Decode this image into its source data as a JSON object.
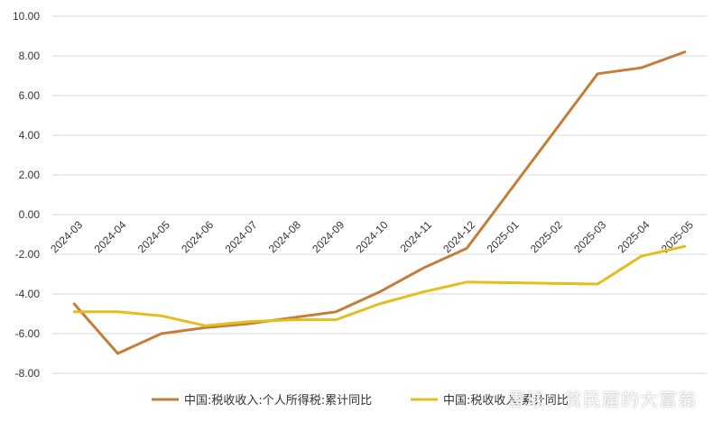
{
  "chart_data": {
    "type": "line",
    "categories": [
      "2024-03",
      "2024-04",
      "2024-05",
      "2024-06",
      "2024-07",
      "2024-08",
      "2024-09",
      "2024-10",
      "2024-11",
      "2024-12",
      "2025-01",
      "2025-02",
      "2025-03",
      "2025-04",
      "2025-05"
    ],
    "series": [
      {
        "name": "中国:税收收入:个人所得税:累计同比",
        "color": "#C47E3A",
        "values": [
          -4.5,
          -7.0,
          -6.0,
          -5.7,
          -5.5,
          -5.2,
          -4.9,
          -3.9,
          -2.7,
          -1.7,
          null,
          null,
          7.1,
          7.4,
          8.2
        ]
      },
      {
        "name": "中国:税收收入:累计同比",
        "color": "#E3BE1E",
        "values": [
          -4.9,
          -4.9,
          -5.1,
          -5.6,
          -5.4,
          -5.3,
          -5.3,
          -4.5,
          -3.9,
          -3.4,
          null,
          null,
          -3.5,
          -2.1,
          -1.6
        ]
      }
    ],
    "yticks": [
      "10.00",
      "8.00",
      "6.00",
      "4.00",
      "2.00",
      "0.00",
      "-2.00",
      "-4.00",
      "-6.00",
      "-8.00"
    ],
    "ylim": [
      -8,
      10
    ],
    "grid": true,
    "legend": "bottom",
    "title": "",
    "xlabel": "",
    "ylabel": ""
  },
  "watermark": "雪球：贫民窟的大富翁"
}
